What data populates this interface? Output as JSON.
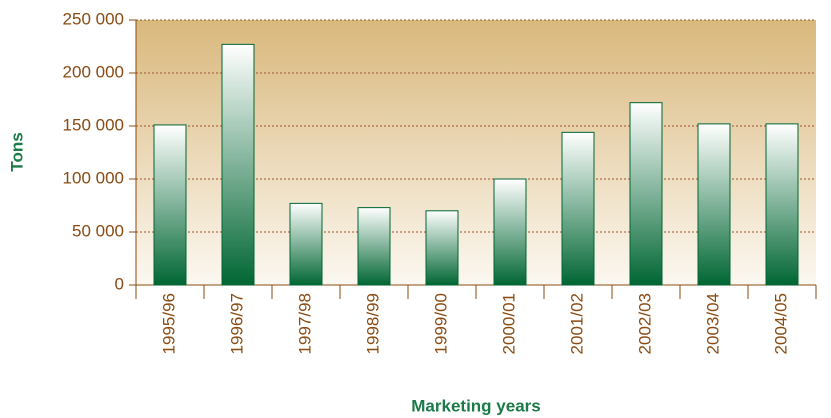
{
  "chart_data": {
    "type": "bar",
    "x_label": "Marketing years",
    "y_label": "Tons",
    "categories": [
      "1995/96",
      "1996/97",
      "1997/98",
      "1998/99",
      "1999/00",
      "2000/01",
      "2001/02",
      "2002/03",
      "2003/04",
      "2004/05"
    ],
    "values": [
      151000,
      227000,
      77000,
      73000,
      70000,
      100000,
      144000,
      172000,
      152000,
      152000
    ],
    "color": "#006633",
    "ylim": [
      0,
      250000
    ],
    "yticks": [
      0,
      {
        "value": 50000,
        "label": "50 000"
      },
      {
        "value": 100000,
        "label": "100 000"
      },
      {
        "value": 150000,
        "label": "150 000"
      },
      {
        "value": 200000,
        "label": "200 000"
      },
      {
        "value": 250000,
        "label": "250 000"
      }
    ],
    "grid": true
  }
}
